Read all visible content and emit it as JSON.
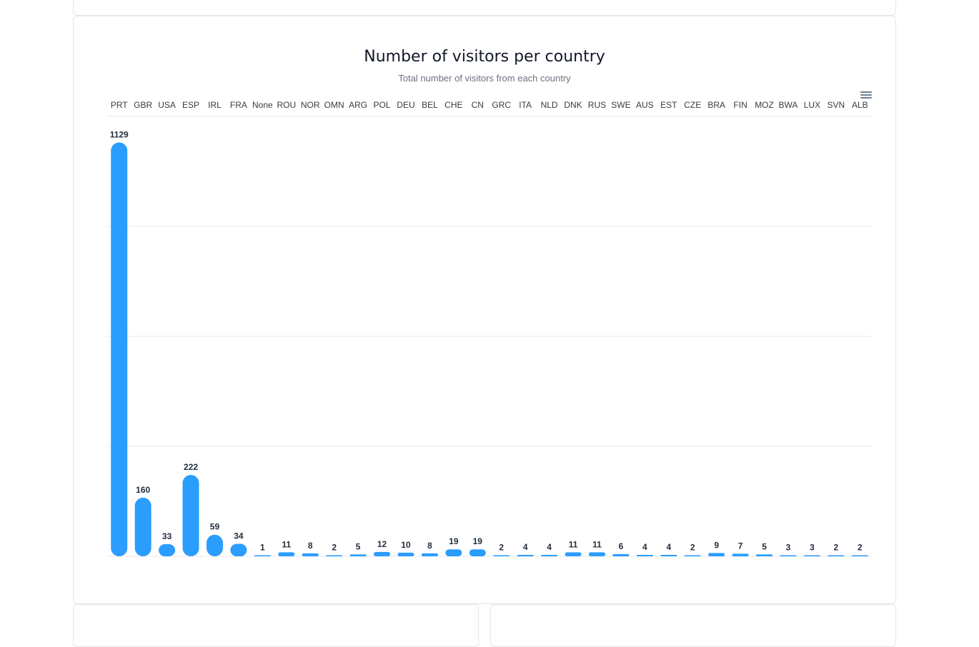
{
  "chart_data": {
    "type": "bar",
    "title": "Number of visitors per country",
    "subtitle": "Total number of visitors from each country",
    "xlabel": "",
    "ylabel": "",
    "categories": [
      "PRT",
      "GBR",
      "USA",
      "ESP",
      "IRL",
      "FRA",
      "None",
      "ROU",
      "NOR",
      "OMN",
      "ARG",
      "POL",
      "DEU",
      "BEL",
      "CHE",
      "CN",
      "GRC",
      "ITA",
      "NLD",
      "DNK",
      "RUS",
      "SWE",
      "AUS",
      "EST",
      "CZE",
      "BRA",
      "FIN",
      "MOZ",
      "BWA",
      "LUX",
      "SVN",
      "ALB"
    ],
    "values": [
      1129,
      160,
      33,
      222,
      59,
      34,
      1,
      11,
      8,
      2,
      5,
      12,
      10,
      8,
      19,
      19,
      2,
      4,
      4,
      11,
      11,
      6,
      4,
      4,
      2,
      9,
      7,
      5,
      3,
      3,
      2,
      2
    ],
    "ylim": [
      0,
      1200
    ],
    "x_axis_position": "top",
    "grid": true,
    "data_labels": true,
    "bar_color": "#2a9dff",
    "grid_color": "#e5e7eb",
    "label_color": "#1f2d3d",
    "axis_label_color": "#373d3f"
  },
  "toolbar": {
    "menu_icon": "hamburger-menu-icon"
  }
}
